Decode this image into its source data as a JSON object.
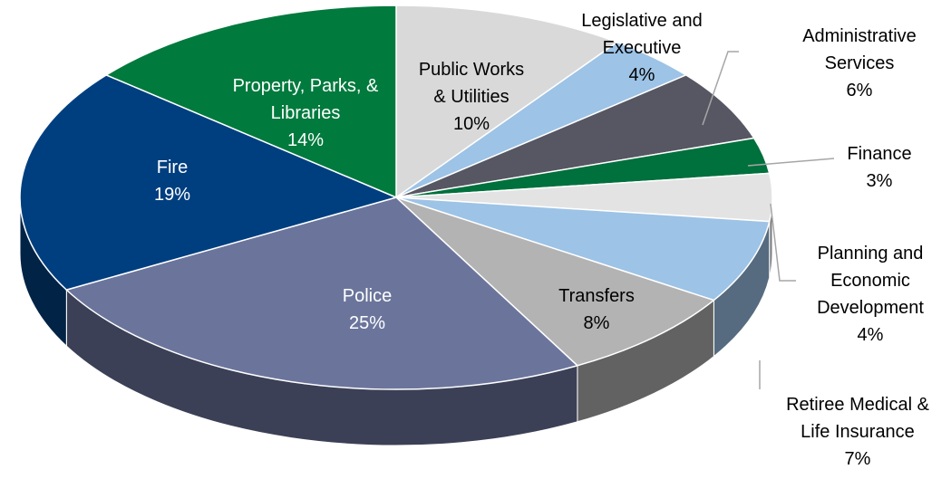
{
  "chart_data": {
    "type": "pie",
    "categories": [
      "Public Works\n& Utilities",
      "Legislative and\nExecutive",
      "Administrative\nServices",
      "Finance",
      "Planning and\nEconomic\nDevelopment",
      "Retiree Medical &\nLife Insurance",
      "Transfers",
      "Police",
      "Fire",
      "Property, Parks, &\nLibraries"
    ],
    "values": [
      10,
      4,
      6,
      3,
      4,
      7,
      8,
      25,
      19,
      14
    ],
    "value_labels": [
      "10%",
      "4%",
      "6%",
      "3%",
      "4%",
      "7%",
      "8%",
      "25%",
      "19%",
      "14%"
    ],
    "colors": [
      "#d9d9d9",
      "#9dc3e6",
      "#575763",
      "#00703c",
      "#e3e3e3",
      "#9dc3e6",
      "#b3b3b3",
      "#6b759c",
      "#003f7f",
      "#007a3d"
    ]
  }
}
